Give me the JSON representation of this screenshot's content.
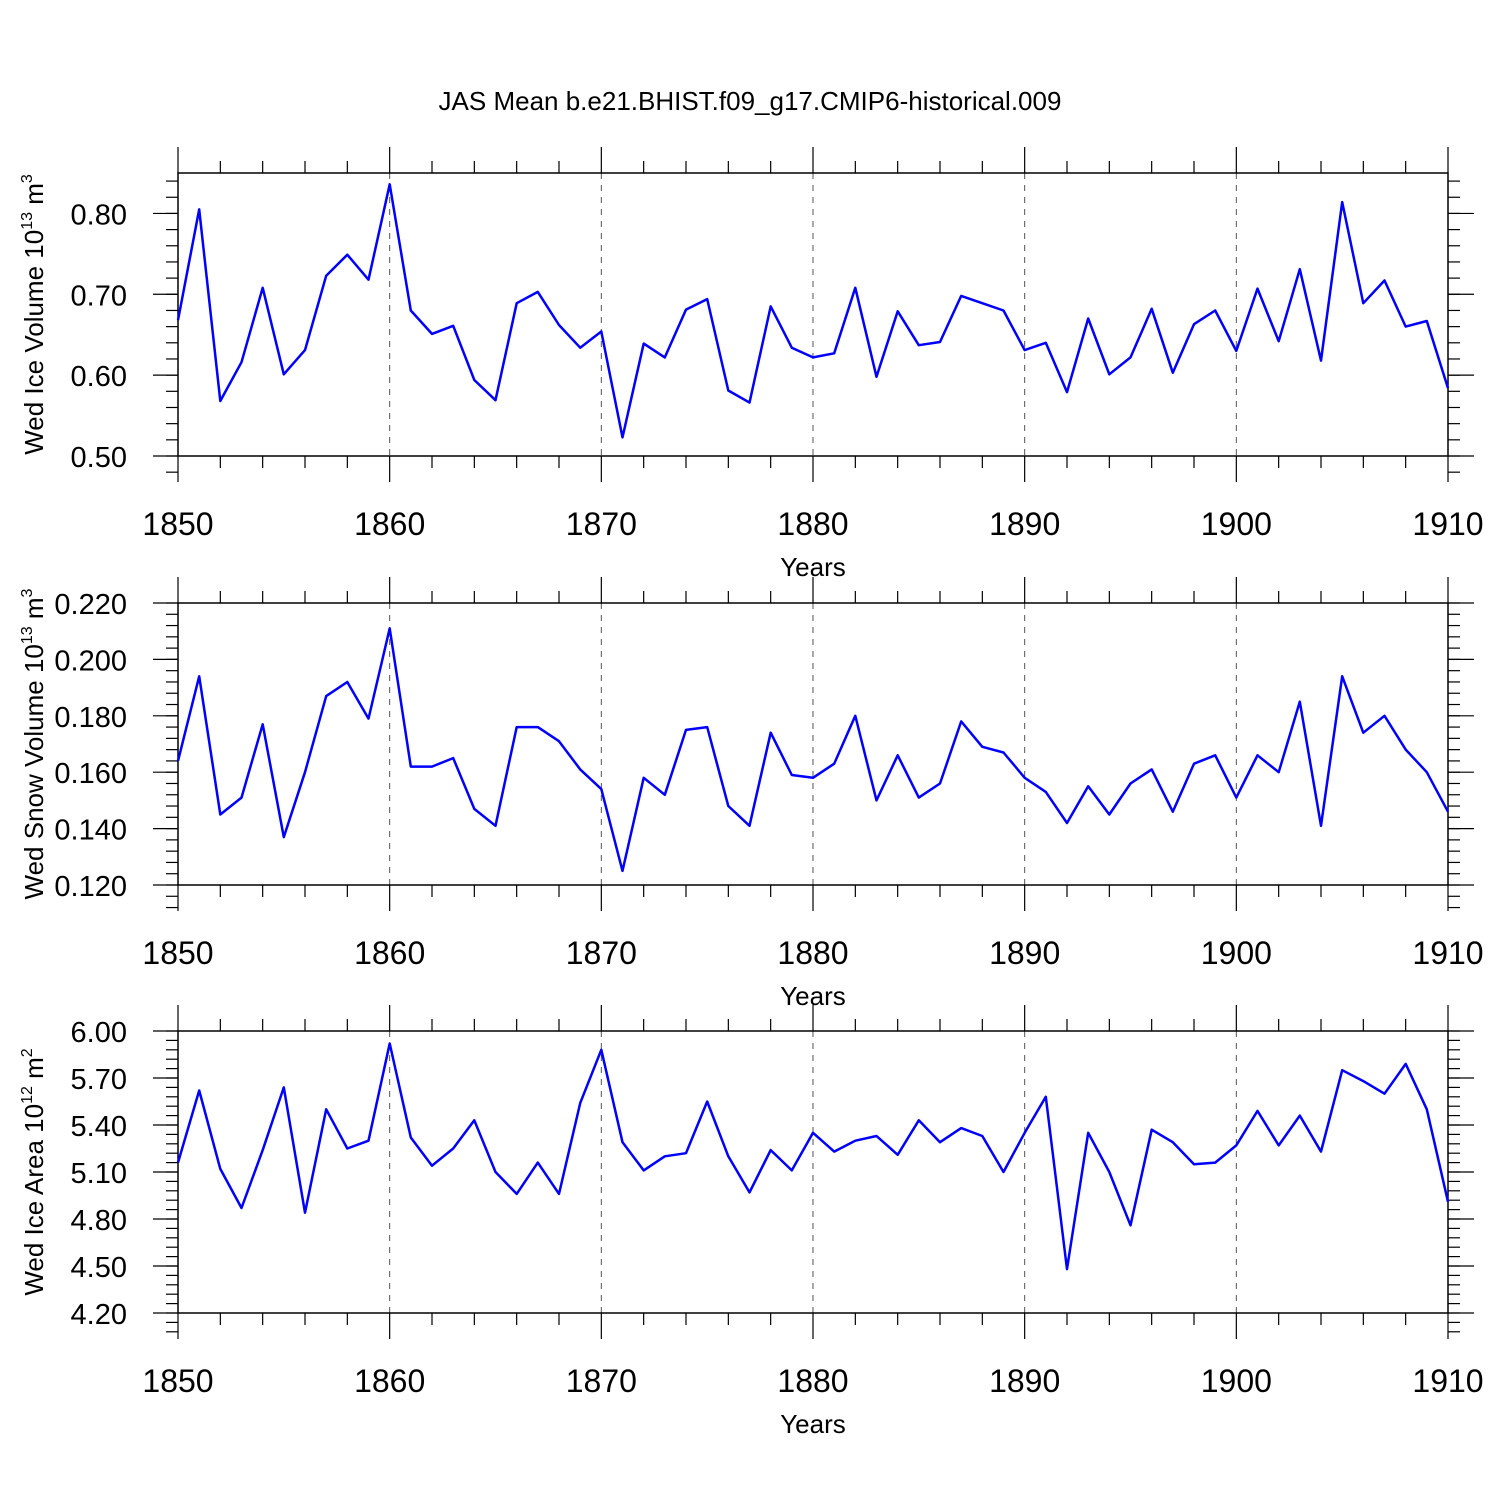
{
  "figure": {
    "title": "JAS Mean b.e21.BHIST.f09_g17.CMIP6-historical.009"
  },
  "chart_data": [
    {
      "type": "line",
      "xlabel": "Years",
      "ylabel": {
        "prefix": "Wed Ice Volume 10",
        "sup1": "13",
        "mid": " m",
        "sup2": "3"
      },
      "xlim": [
        1850,
        1910
      ],
      "ylim": [
        0.5,
        0.85
      ],
      "x_ticks": [
        "1850",
        "1860",
        "1870",
        "1880",
        "1890",
        "1900",
        "1910"
      ],
      "y_ticks": [
        "0.50",
        "0.60",
        "0.70",
        "0.80"
      ],
      "grid": "vertical dashed at major x ticks",
      "color": "#0000ff",
      "x": [
        1850,
        1851,
        1852,
        1853,
        1854,
        1855,
        1856,
        1857,
        1858,
        1859,
        1860,
        1861,
        1862,
        1863,
        1864,
        1865,
        1866,
        1867,
        1868,
        1869,
        1870,
        1871,
        1872,
        1873,
        1874,
        1875,
        1876,
        1877,
        1878,
        1879,
        1880,
        1881,
        1882,
        1883,
        1884,
        1885,
        1886,
        1887,
        1888,
        1889,
        1890,
        1891,
        1892,
        1893,
        1894,
        1895,
        1896,
        1897,
        1898,
        1899,
        1900,
        1901,
        1902,
        1903,
        1904,
        1905,
        1906,
        1907,
        1908,
        1909,
        1910
      ],
      "values": [
        0.668,
        0.805,
        0.568,
        0.616,
        0.708,
        0.601,
        0.631,
        0.723,
        0.749,
        0.718,
        0.836,
        0.68,
        0.651,
        0.661,
        0.594,
        0.569,
        0.689,
        0.703,
        0.662,
        0.634,
        0.654,
        0.523,
        0.639,
        0.622,
        0.681,
        0.694,
        0.581,
        0.566,
        0.685,
        0.634,
        0.622,
        0.627,
        0.708,
        0.598,
        0.679,
        0.637,
        0.641,
        0.698,
        0.689,
        0.68,
        0.631,
        0.64,
        0.579,
        0.67,
        0.601,
        0.622,
        0.682,
        0.603,
        0.663,
        0.68,
        0.63,
        0.707,
        0.642,
        0.731,
        0.618,
        0.814,
        0.689,
        0.717,
        0.66,
        0.667,
        0.584
      ]
    },
    {
      "type": "line",
      "xlabel": "Years",
      "ylabel": {
        "prefix": "Wed Snow Volume 10",
        "sup1": "13",
        "mid": " m",
        "sup2": "3"
      },
      "xlim": [
        1850,
        1910
      ],
      "ylim": [
        0.12,
        0.22
      ],
      "x_ticks": [
        "1850",
        "1860",
        "1870",
        "1880",
        "1890",
        "1900",
        "1910"
      ],
      "y_ticks": [
        "0.120",
        "0.140",
        "0.160",
        "0.180",
        "0.200",
        "0.220"
      ],
      "grid": "vertical dashed at major x ticks",
      "color": "#0000ff",
      "x": [
        1850,
        1851,
        1852,
        1853,
        1854,
        1855,
        1856,
        1857,
        1858,
        1859,
        1860,
        1861,
        1862,
        1863,
        1864,
        1865,
        1866,
        1867,
        1868,
        1869,
        1870,
        1871,
        1872,
        1873,
        1874,
        1875,
        1876,
        1877,
        1878,
        1879,
        1880,
        1881,
        1882,
        1883,
        1884,
        1885,
        1886,
        1887,
        1888,
        1889,
        1890,
        1891,
        1892,
        1893,
        1894,
        1895,
        1896,
        1897,
        1898,
        1899,
        1900,
        1901,
        1902,
        1903,
        1904,
        1905,
        1906,
        1907,
        1908,
        1909,
        1910
      ],
      "values": [
        0.164,
        0.194,
        0.145,
        0.151,
        0.177,
        0.137,
        0.16,
        0.187,
        0.192,
        0.179,
        0.211,
        0.162,
        0.162,
        0.165,
        0.147,
        0.141,
        0.176,
        0.176,
        0.171,
        0.161,
        0.154,
        0.125,
        0.158,
        0.152,
        0.175,
        0.176,
        0.148,
        0.141,
        0.174,
        0.159,
        0.158,
        0.163,
        0.18,
        0.15,
        0.166,
        0.151,
        0.156,
        0.178,
        0.169,
        0.167,
        0.158,
        0.153,
        0.142,
        0.155,
        0.145,
        0.156,
        0.161,
        0.146,
        0.163,
        0.166,
        0.151,
        0.166,
        0.16,
        0.185,
        0.141,
        0.194,
        0.174,
        0.18,
        0.168,
        0.16,
        0.146
      ]
    },
    {
      "type": "line",
      "xlabel": "Years",
      "ylabel": {
        "prefix": "Wed Ice Area 10",
        "sup1": "12",
        "mid": " m",
        "sup2": "2"
      },
      "xlim": [
        1850,
        1910
      ],
      "ylim": [
        4.2,
        6.0
      ],
      "x_ticks": [
        "1850",
        "1860",
        "1870",
        "1880",
        "1890",
        "1900",
        "1910"
      ],
      "y_ticks": [
        "4.20",
        "4.50",
        "4.80",
        "5.10",
        "5.40",
        "5.70",
        "6.00"
      ],
      "grid": "vertical dashed at major x ticks",
      "color": "#0000ff",
      "x": [
        1850,
        1851,
        1852,
        1853,
        1854,
        1855,
        1856,
        1857,
        1858,
        1859,
        1860,
        1861,
        1862,
        1863,
        1864,
        1865,
        1866,
        1867,
        1868,
        1869,
        1870,
        1871,
        1872,
        1873,
        1874,
        1875,
        1876,
        1877,
        1878,
        1879,
        1880,
        1881,
        1882,
        1883,
        1884,
        1885,
        1886,
        1887,
        1888,
        1889,
        1890,
        1891,
        1892,
        1893,
        1894,
        1895,
        1896,
        1897,
        1898,
        1899,
        1900,
        1901,
        1902,
        1903,
        1904,
        1905,
        1906,
        1907,
        1908,
        1909,
        1910
      ],
      "values": [
        5.16,
        5.62,
        5.12,
        4.87,
        5.24,
        5.64,
        4.84,
        5.5,
        5.25,
        5.3,
        5.92,
        5.32,
        5.14,
        5.25,
        5.43,
        5.1,
        4.96,
        5.16,
        4.96,
        5.54,
        5.88,
        5.29,
        5.11,
        5.2,
        5.22,
        5.55,
        5.2,
        4.97,
        5.24,
        5.11,
        5.35,
        5.23,
        5.3,
        5.33,
        5.21,
        5.43,
        5.29,
        5.38,
        5.33,
        5.1,
        5.35,
        5.58,
        4.48,
        5.35,
        5.1,
        4.76,
        5.37,
        5.29,
        5.15,
        5.16,
        5.27,
        5.49,
        5.27,
        5.46,
        5.23,
        5.75,
        5.68,
        5.6,
        5.79,
        5.5,
        4.91
      ]
    }
  ]
}
